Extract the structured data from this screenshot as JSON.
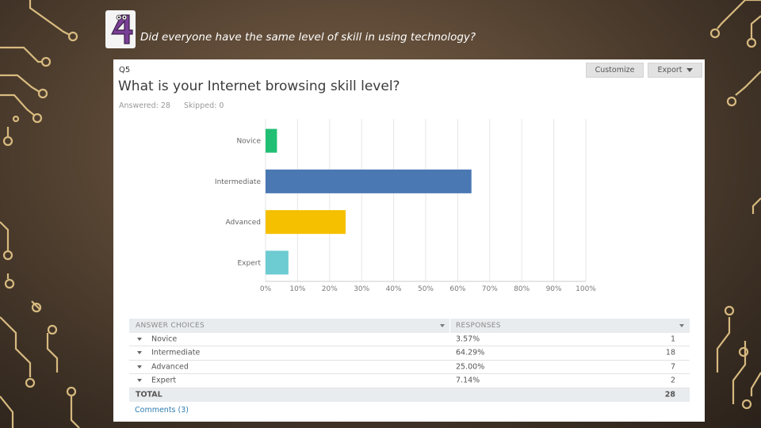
{
  "slide": {
    "title": "Did everyone have the same level of skill in using technology?",
    "logo_label": "4"
  },
  "survey": {
    "question_number": "Q5",
    "question": "What is your Internet browsing skill level?",
    "answered": "Answered: 28",
    "skipped": "Skipped: 0",
    "customize_label": "Customize",
    "export_label": "Export"
  },
  "chart_data": {
    "type": "bar",
    "orientation": "horizontal",
    "categories": [
      "Novice",
      "Intermediate",
      "Advanced",
      "Expert"
    ],
    "values": [
      3.57,
      64.29,
      25.0,
      7.14
    ],
    "colors": [
      "#21bf73",
      "#4a78b3",
      "#f5c000",
      "#6dcbd2"
    ],
    "xlim": [
      0,
      100
    ],
    "x_ticks": [
      "0%",
      "10%",
      "20%",
      "30%",
      "40%",
      "50%",
      "60%",
      "70%",
      "80%",
      "90%",
      "100%"
    ],
    "grid": true
  },
  "table": {
    "headers": {
      "choices": "ANSWER CHOICES",
      "responses": "RESPONSES"
    },
    "rows": [
      {
        "choice": "Novice",
        "percent": "3.57%",
        "count": "1"
      },
      {
        "choice": "Intermediate",
        "percent": "64.29%",
        "count": "18"
      },
      {
        "choice": "Advanced",
        "percent": "25.00%",
        "count": "7"
      },
      {
        "choice": "Expert",
        "percent": "7.14%",
        "count": "2"
      }
    ],
    "total_label": "TOTAL",
    "total_count": "28"
  },
  "comments_label": "Comments (3)"
}
